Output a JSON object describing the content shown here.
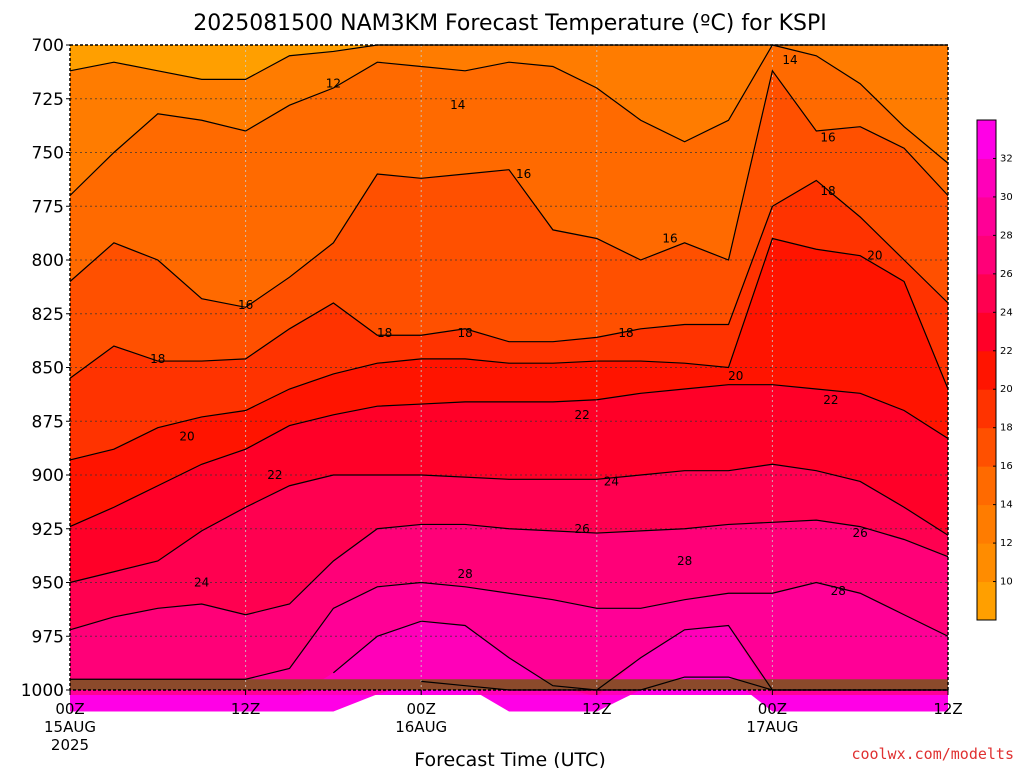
{
  "chart_data": {
    "type": "heatmap",
    "title": "2025081500 NAM3KM Forecast Temperature (ºC) for KSPI",
    "xlabel": "Forecast Time (UTC)",
    "ylabel": "",
    "credit": "coolwx.com/modelts",
    "y_axis": {
      "ticks": [
        700,
        725,
        750,
        775,
        800,
        825,
        850,
        875,
        900,
        925,
        950,
        975,
        1000
      ],
      "range": [
        700,
        1000
      ],
      "inverted": true
    },
    "x_axis": {
      "range_hours": [
        0,
        60
      ],
      "ticks": [
        {
          "hour": 0,
          "label": "00Z",
          "sub1": "15AUG",
          "sub2": "2025"
        },
        {
          "hour": 12,
          "label": "12Z",
          "sub1": "",
          "sub2": ""
        },
        {
          "hour": 24,
          "label": "00Z",
          "sub1": "16AUG",
          "sub2": ""
        },
        {
          "hour": 36,
          "label": "12Z",
          "sub1": "",
          "sub2": ""
        },
        {
          "hour": 48,
          "label": "00Z",
          "sub1": "17AUG",
          "sub2": ""
        },
        {
          "hour": 60,
          "label": "12Z",
          "sub1": "",
          "sub2": ""
        }
      ]
    },
    "grid": true,
    "ground_color": "#8b4a2b",
    "colorbar": {
      "position": "right",
      "levels": [
        8,
        10,
        12,
        14,
        16,
        18,
        20,
        22,
        24,
        26,
        28,
        30,
        32,
        34
      ],
      "tick_labels": [
        10,
        12,
        14,
        16,
        18,
        20,
        22,
        24,
        26,
        28,
        30,
        32
      ],
      "colors": [
        "#ff9f00",
        "#ff8c00",
        "#ff7c00",
        "#ff6a00",
        "#ff5000",
        "#ff3300",
        "#ff1400",
        "#ff0028",
        "#ff0050",
        "#ff0078",
        "#ff0096",
        "#ff00b9",
        "#ff00e6"
      ]
    },
    "contour_profiles": {
      "hours": [
        0,
        3,
        6,
        9,
        12,
        15,
        18,
        21,
        24,
        27,
        30,
        33,
        36,
        39,
        42,
        45,
        48,
        51,
        54,
        57,
        60
      ],
      "level_12_hPa": [
        712,
        708,
        712,
        716,
        716,
        705,
        703,
        700,
        700,
        700,
        700,
        700,
        700,
        700,
        700,
        700,
        700,
        700,
        700,
        700,
        700
      ],
      "level_14_hPa": [
        770,
        750,
        732,
        735,
        740,
        728,
        720,
        708,
        710,
        712,
        708,
        710,
        720,
        735,
        745,
        735,
        700,
        705,
        718,
        738,
        755
      ],
      "level_16_hPa": [
        810,
        792,
        800,
        818,
        822,
        808,
        792,
        760,
        762,
        760,
        758,
        786,
        790,
        800,
        792,
        800,
        712,
        740,
        738,
        748,
        770
      ],
      "level_18_hPa": [
        855,
        840,
        847,
        847,
        846,
        832,
        820,
        835,
        835,
        832,
        838,
        838,
        836,
        832,
        830,
        830,
        775,
        763,
        780,
        800,
        820
      ],
      "level_20_hPa": [
        893,
        888,
        878,
        873,
        870,
        860,
        853,
        848,
        846,
        846,
        848,
        848,
        847,
        847,
        848,
        850,
        790,
        795,
        798,
        810,
        860
      ],
      "level_22_hPa": [
        924,
        915,
        905,
        895,
        888,
        877,
        872,
        868,
        867,
        866,
        866,
        866,
        865,
        862,
        860,
        858,
        858,
        860,
        862,
        870,
        883
      ],
      "level_24_hPa": [
        950,
        945,
        940,
        926,
        915,
        905,
        900,
        900,
        900,
        901,
        902,
        902,
        902,
        900,
        898,
        898,
        895,
        898,
        903,
        915,
        928
      ],
      "level_26_hPa": [
        972,
        966,
        962,
        960,
        965,
        960,
        940,
        925,
        923,
        923,
        925,
        926,
        927,
        926,
        925,
        923,
        922,
        921,
        924,
        930,
        938
      ],
      "level_28_hPa": [
        995,
        995,
        995,
        995,
        995,
        990,
        962,
        952,
        950,
        952,
        955,
        958,
        962,
        962,
        958,
        955,
        955,
        950,
        955,
        965,
        975
      ],
      "level_30_hPa": [
        1005,
        1005,
        1005,
        1005,
        1005,
        1005,
        992,
        975,
        968,
        970,
        985,
        998,
        1003,
        985,
        972,
        970,
        1003,
        1005,
        1005,
        1005,
        1005
      ],
      "level_32_hPa": [
        1010,
        1010,
        1010,
        1010,
        1010,
        1010,
        1010,
        1002,
        996,
        998,
        1010,
        1010,
        1010,
        1000,
        994,
        994,
        1010,
        1010,
        1010,
        1010,
        1010
      ]
    },
    "contour_labels": [
      {
        "text": "12",
        "hour": 18.0,
        "hPa": 718
      },
      {
        "text": "14",
        "hour": 26.5,
        "hPa": 728
      },
      {
        "text": "14",
        "hour": 49.2,
        "hPa": 707
      },
      {
        "text": "16",
        "hour": 31.0,
        "hPa": 760
      },
      {
        "text": "16",
        "hour": 51.8,
        "hPa": 743
      },
      {
        "text": "16",
        "hour": 12.0,
        "hPa": 821
      },
      {
        "text": "16",
        "hour": 41.0,
        "hPa": 790
      },
      {
        "text": "18",
        "hour": 51.8,
        "hPa": 768
      },
      {
        "text": "18",
        "hour": 6.0,
        "hPa": 846
      },
      {
        "text": "18",
        "hour": 21.5,
        "hPa": 834
      },
      {
        "text": "18",
        "hour": 27.0,
        "hPa": 834
      },
      {
        "text": "18",
        "hour": 38.0,
        "hPa": 834
      },
      {
        "text": "20",
        "hour": 55.0,
        "hPa": 798
      },
      {
        "text": "20",
        "hour": 8.0,
        "hPa": 882
      },
      {
        "text": "20",
        "hour": 45.5,
        "hPa": 854
      },
      {
        "text": "22",
        "hour": 14.0,
        "hPa": 900
      },
      {
        "text": "22",
        "hour": 35.0,
        "hPa": 872
      },
      {
        "text": "22",
        "hour": 52.0,
        "hPa": 865
      },
      {
        "text": "24",
        "hour": 9.0,
        "hPa": 950
      },
      {
        "text": "24",
        "hour": 37.0,
        "hPa": 903
      },
      {
        "text": "26",
        "hour": 35.0,
        "hPa": 925
      },
      {
        "text": "26",
        "hour": 54.0,
        "hPa": 927
      },
      {
        "text": "28",
        "hour": 27.0,
        "hPa": 946
      },
      {
        "text": "28",
        "hour": 42.0,
        "hPa": 940
      },
      {
        "text": "28",
        "hour": 52.5,
        "hPa": 954
      }
    ]
  }
}
